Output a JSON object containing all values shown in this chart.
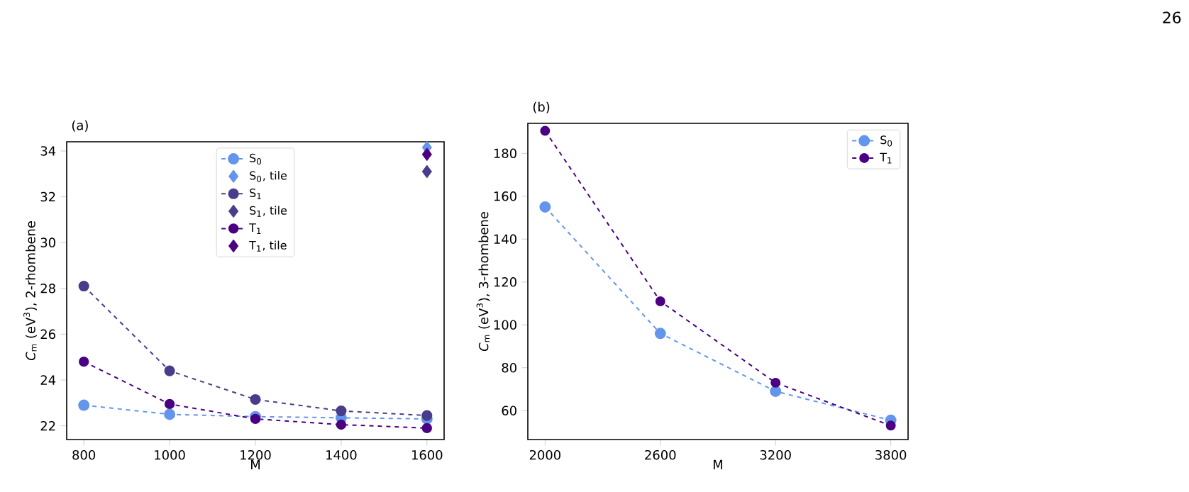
{
  "chart_data": [
    {
      "type": "line",
      "title": "(a)",
      "xlabel": "M",
      "ylabel": "*C*$_{m}$ (eV$^{3}$), 2-rhombene",
      "annotations": [
        "26"
      ],
      "x": [
        800,
        1000,
        1200,
        1400,
        1600
      ],
      "xlim": [
        760,
        1640
      ],
      "xticks": [
        800,
        1000,
        1200,
        1400,
        1600
      ],
      "ylim": [
        21.4,
        34.4
      ],
      "yticks": [
        22,
        24,
        26,
        28,
        30,
        32,
        34
      ],
      "legend": "top",
      "grid": false,
      "series": [
        {
          "name": "S$_{0}$",
          "color": "#6495ed",
          "values": [
            22.9,
            22.5,
            22.4,
            22.35,
            22.3
          ],
          "marker": "circle",
          "line_style": "dashed"
        },
        {
          "name": "S$_{0}$, tile",
          "type": "scatter",
          "color": "#6495ed",
          "values": [
            null,
            null,
            null,
            null,
            34.15
          ],
          "marker": "diamond"
        },
        {
          "name": "S$_{1}$",
          "color": "#483d8b",
          "values": [
            28.1,
            24.4,
            23.15,
            22.65,
            22.45
          ],
          "marker": "circle",
          "line_style": "dashed"
        },
        {
          "name": "S$_{1}$, tile",
          "type": "scatter",
          "color": "#483d8b",
          "values": [
            null,
            null,
            null,
            null,
            33.1
          ],
          "marker": "diamond"
        },
        {
          "name": "T$_{1}$",
          "color": "#4b0082",
          "values": [
            24.8,
            22.95,
            22.3,
            22.05,
            21.9
          ],
          "marker": "circle",
          "line_style": "dashed"
        },
        {
          "name": "T$_{1}$, tile",
          "type": "scatter",
          "color": "#4b0082",
          "values": [
            null,
            null,
            null,
            null,
            33.85
          ],
          "marker": "diamond"
        }
      ]
    },
    {
      "type": "line",
      "title": "(b)",
      "xlabel": "M",
      "ylabel": "*C*$_{m}$ (eV$^{3}$), 3-rhombene",
      "x": [
        2000,
        2600,
        3200,
        3800
      ],
      "xlim": [
        1910,
        3890
      ],
      "xticks": [
        2000,
        2600,
        3200,
        3800
      ],
      "ylim": [
        46.5,
        194
      ],
      "yticks": [
        60,
        80,
        100,
        120,
        140,
        160,
        180
      ],
      "legend": "top right",
      "grid": false,
      "series": [
        {
          "name": "S$_{0}$",
          "color": "#6495ed",
          "values": [
            155,
            96,
            69,
            55.5
          ],
          "marker": "circle",
          "line_style": "dashed"
        },
        {
          "name": "T$_{1}$",
          "color": "#4b0082",
          "values": [
            190.5,
            111,
            73,
            53
          ],
          "marker": "circle",
          "line_style": "dashed"
        }
      ]
    }
  ]
}
